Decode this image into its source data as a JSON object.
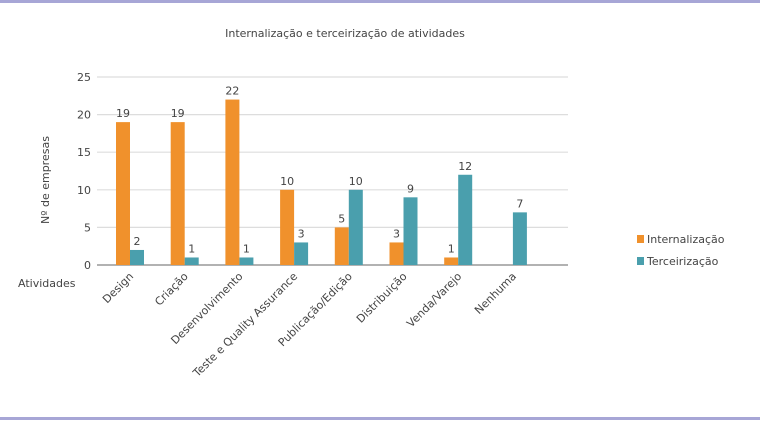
{
  "chart_data": {
    "type": "bar",
    "title": "Internalização e terceirização de atividades",
    "xlabel": "Atividades",
    "ylabel": "Nº de empresas",
    "ylim": [
      0,
      25
    ],
    "yticks": [
      0,
      5,
      10,
      15,
      20,
      25
    ],
    "grid": true,
    "legend_position": "right",
    "categories": [
      "Design",
      "Criação",
      "Desenvolvimento",
      "Teste e Quality Assurance",
      "Publicação/Edição",
      "Distribuição",
      "Venda/Varejo",
      "Nenhuma"
    ],
    "series": [
      {
        "name": "Internalização",
        "color": "#f0912c",
        "values": [
          19,
          19,
          22,
          10,
          5,
          3,
          1,
          null
        ]
      },
      {
        "name": "Terceirização",
        "color": "#4a9fad",
        "values": [
          2,
          1,
          1,
          3,
          10,
          9,
          12,
          7
        ]
      }
    ]
  }
}
